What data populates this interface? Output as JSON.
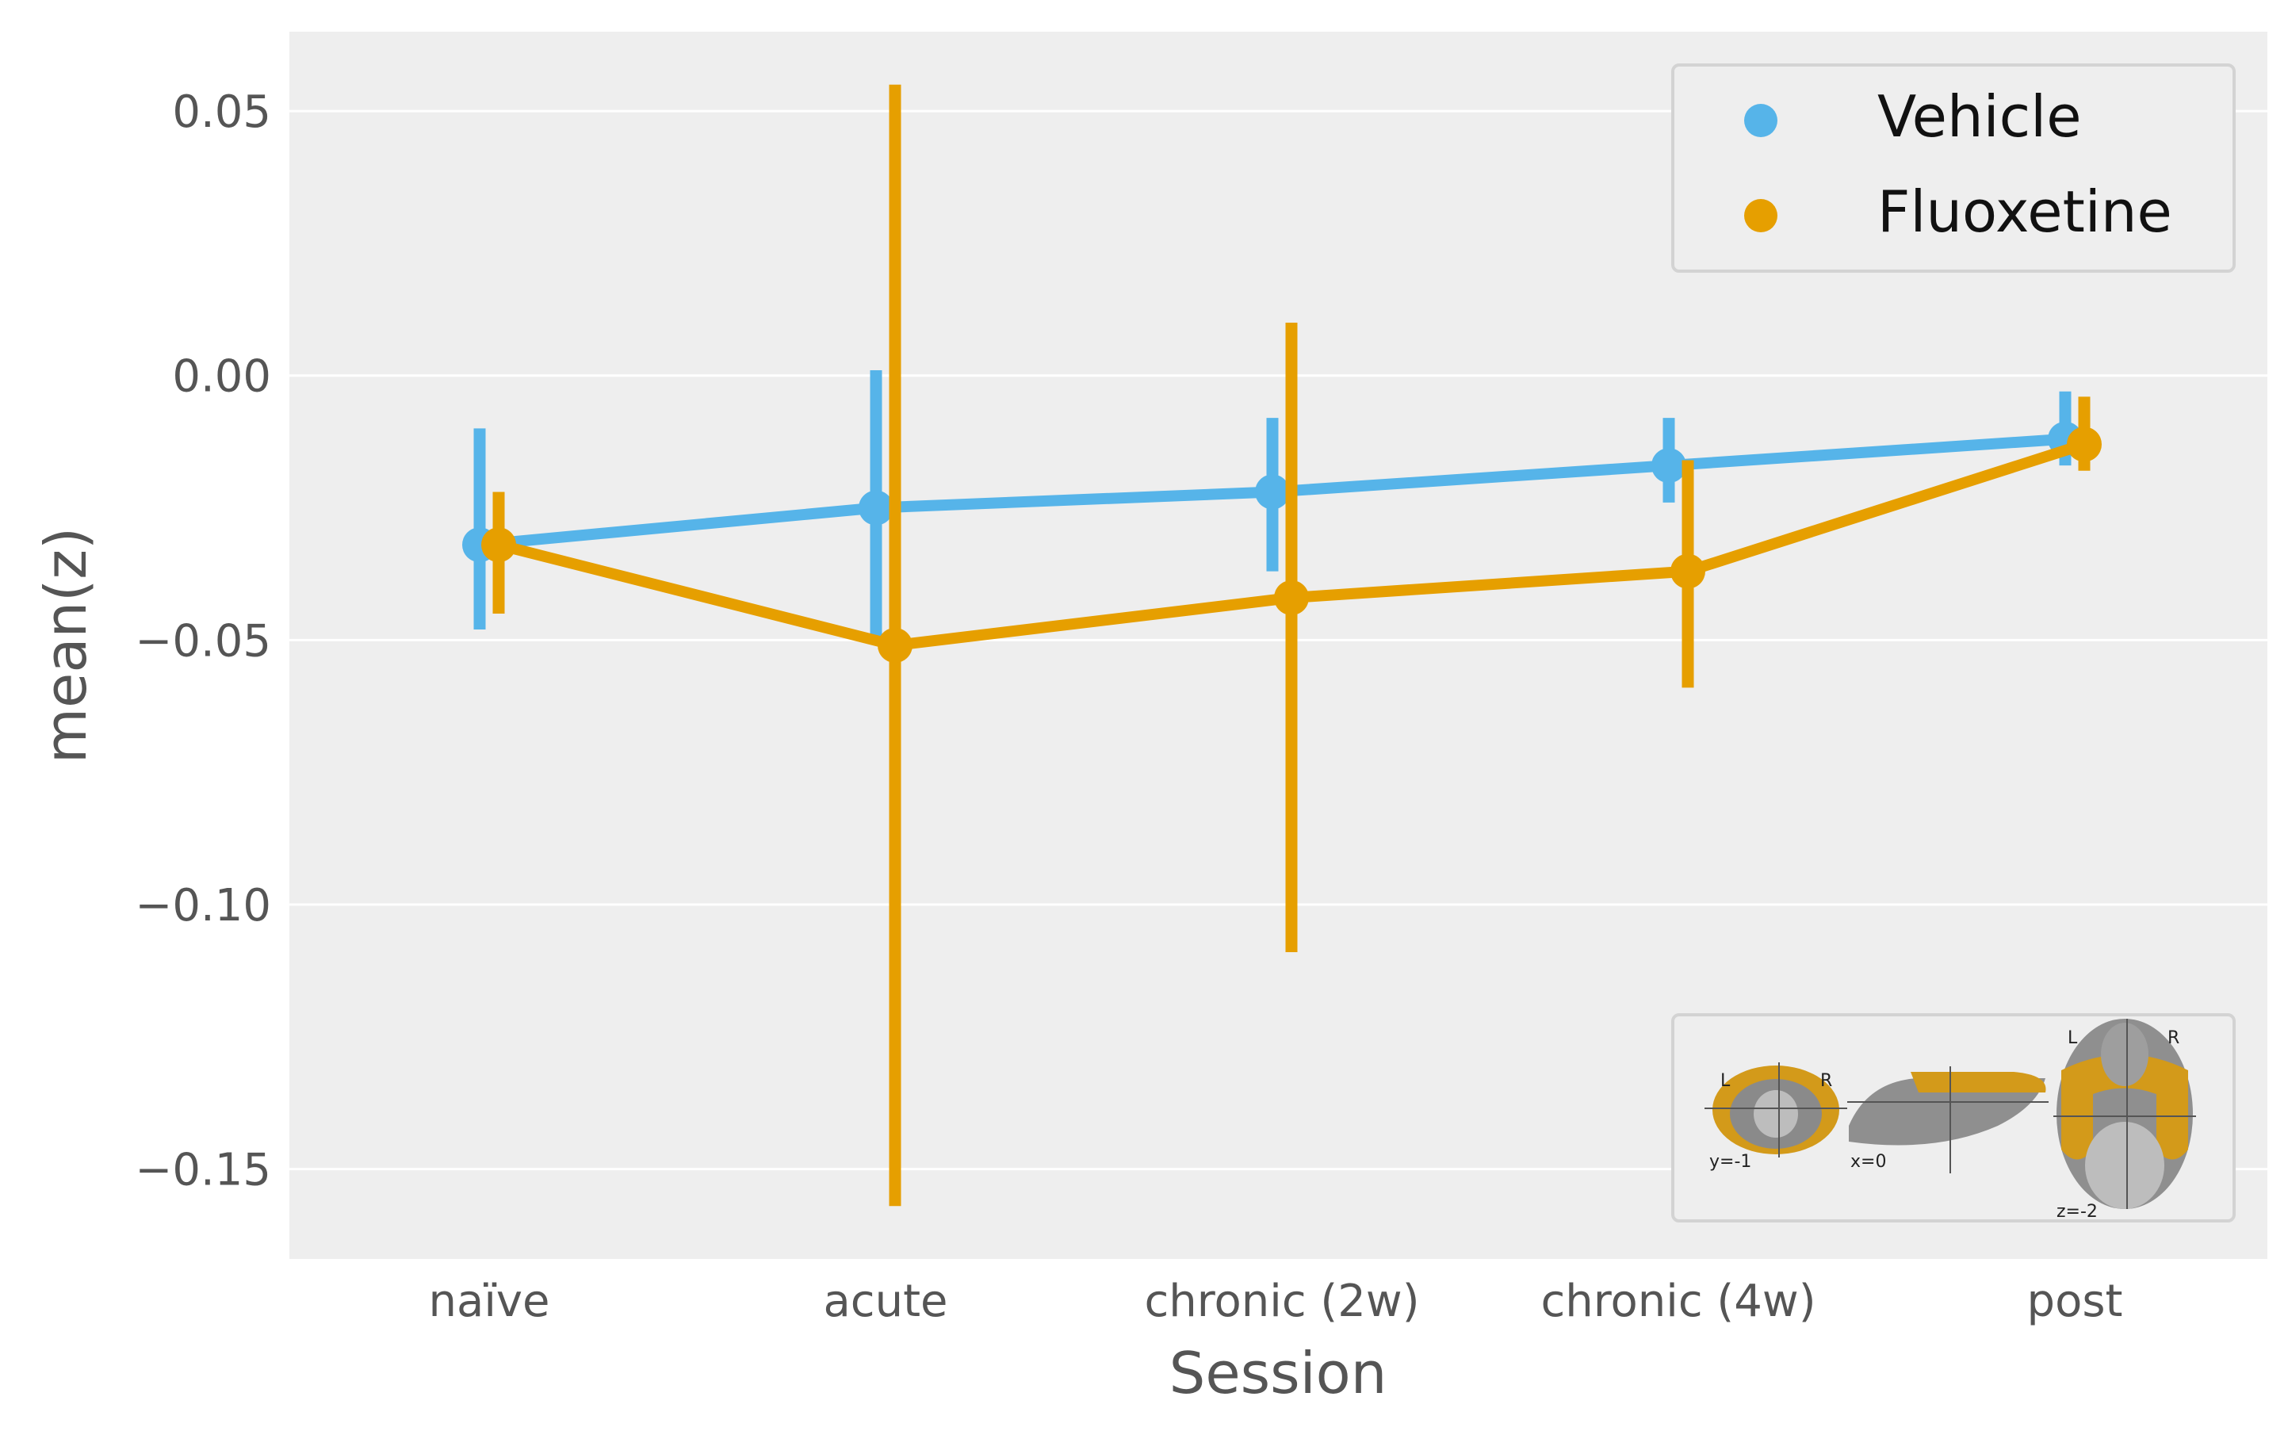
{
  "chart_data": {
    "type": "line",
    "title": "",
    "xlabel": "Session",
    "ylabel": "mean(z)",
    "categories": [
      "naïve",
      "acute",
      "chronic (2w)",
      "chronic (4w)",
      "post"
    ],
    "y_ticks": [
      "0.05",
      "0.00",
      "−0.05",
      "−0.10",
      "−0.15"
    ],
    "y_tick_values": [
      0.05,
      0.0,
      -0.05,
      -0.1,
      -0.15
    ],
    "ylim": [
      -0.167,
      0.065
    ],
    "grid": true,
    "legend_position": "top-right",
    "error_bars": true,
    "series": [
      {
        "name": "Vehicle",
        "color": "#56B4E9",
        "values": [
          -0.032,
          -0.025,
          -0.022,
          -0.017,
          -0.012
        ],
        "ci_low": [
          -0.048,
          -0.05,
          -0.037,
          -0.024,
          -0.017
        ],
        "ci_high": [
          -0.01,
          0.001,
          -0.008,
          -0.008,
          -0.003
        ]
      },
      {
        "name": "Fluoxetine",
        "color": "#E69F00",
        "values": [
          -0.032,
          -0.051,
          -0.042,
          -0.037,
          -0.013
        ],
        "ci_low": [
          -0.045,
          -0.157,
          -0.109,
          -0.059,
          -0.018
        ],
        "ci_high": [
          -0.022,
          0.055,
          0.01,
          -0.016,
          -0.004
        ]
      }
    ],
    "inset": {
      "description_icon": "brain-mask-thumbnail",
      "views": [
        {
          "coord": "y=-1",
          "left": "L",
          "right": "R"
        },
        {
          "coord": "x=0"
        },
        {
          "coord": "z=-2",
          "left": "L",
          "right": "R"
        }
      ]
    }
  }
}
